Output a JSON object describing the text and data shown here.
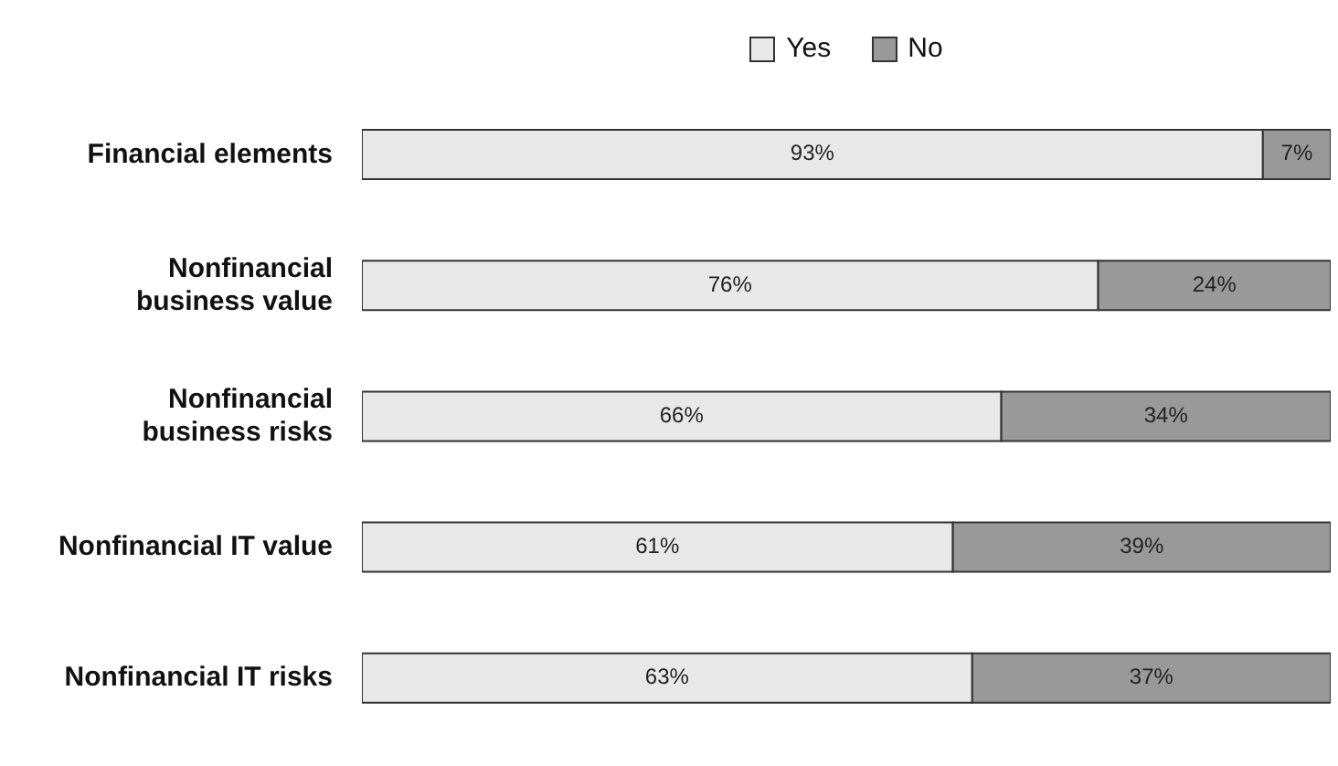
{
  "chart_data": {
    "type": "bar",
    "orientation": "horizontal",
    "stacked": true,
    "categories": [
      "Financial elements",
      "Nonfinancial business value",
      "Nonfinancial business risks",
      "Nonfinancial IT value",
      "Nonfinancial IT risks"
    ],
    "series": [
      {
        "name": "Yes",
        "color": "#e8e8e8",
        "values": [
          93,
          76,
          66,
          61,
          63
        ],
        "value_labels": [
          "93%",
          "76%",
          "66%",
          "61%",
          "63%"
        ]
      },
      {
        "name": "No",
        "color": "#999999",
        "values": [
          7,
          24,
          34,
          39,
          37
        ],
        "value_labels": [
          "7%",
          "24%",
          "34%",
          "39%",
          "37%"
        ]
      }
    ],
    "xlim": [
      0,
      100
    ],
    "tick_labels": "y",
    "legend": "top"
  }
}
